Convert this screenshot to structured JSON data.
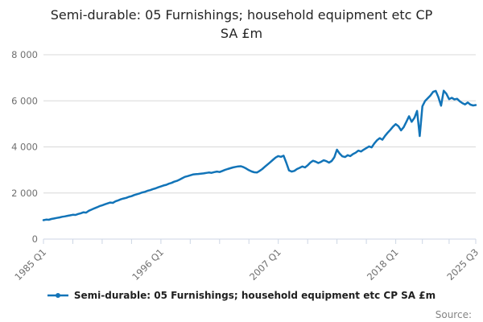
{
  "title": {
    "line1": "Semi-durable: 05 Furnishings; household equipment etc CP",
    "line2": "SA £m",
    "full": "Semi-durable: 05 Furnishings; household equipment etc CP SA £m"
  },
  "legend": {
    "label": "Semi-durable: 05 Furnishings; household equipment etc CP SA £m"
  },
  "source_label": "Source:",
  "colors": {
    "line": "#1274b8",
    "grid": "#d8d8d8",
    "axis": "#ccd6e4",
    "tick_label": "#6f6f6f",
    "title": "#242424",
    "legend_text": "#1f1f1f",
    "source": "#848484"
  },
  "chart_data": {
    "type": "line",
    "title": "Semi-durable: 05 Furnishings; household equipment etc CP SA £m",
    "series_name": "Semi-durable: 05 Furnishings; household equipment etc CP SA £m",
    "frequency": "quarterly",
    "x_range": [
      "1985 Q1",
      "2025 Q3"
    ],
    "ylim": [
      0,
      8000
    ],
    "grid": "horizontal",
    "legend_position": "bottom",
    "y_ticks": [
      {
        "value": 0,
        "label": "0"
      },
      {
        "value": 2000,
        "label": "2 000"
      },
      {
        "value": 4000,
        "label": "4 000"
      },
      {
        "value": 6000,
        "label": "6 000"
      },
      {
        "value": 8000,
        "label": "8 000"
      }
    ],
    "x_tick_labels": [
      {
        "label": "1985 Q1",
        "index": 0
      },
      {
        "label": "1996 Q1",
        "index": 44
      },
      {
        "label": "2007 Q1",
        "index": 88
      },
      {
        "label": "2018 Q1",
        "index": 132
      },
      {
        "label": "2025 Q3",
        "index": 162
      }
    ],
    "minor_tick_indices": [
      0,
      11,
      22,
      33,
      44,
      55,
      66,
      77,
      88,
      99,
      110,
      121,
      132,
      142,
      152,
      162
    ],
    "values": [
      820,
      845,
      838,
      872,
      895,
      918,
      940,
      968,
      985,
      1010,
      1030,
      1055,
      1048,
      1090,
      1120,
      1165,
      1150,
      1230,
      1280,
      1330,
      1375,
      1430,
      1465,
      1510,
      1548,
      1585,
      1572,
      1640,
      1680,
      1725,
      1760,
      1790,
      1835,
      1862,
      1910,
      1945,
      1980,
      2022,
      2050,
      2095,
      2125,
      2170,
      2200,
      2248,
      2285,
      2325,
      2355,
      2405,
      2440,
      2490,
      2525,
      2583,
      2641,
      2700,
      2733,
      2766,
      2800,
      2815,
      2825,
      2840,
      2850,
      2870,
      2890,
      2875,
      2905,
      2930,
      2910,
      2955,
      3000,
      3040,
      3075,
      3110,
      3135,
      3155,
      3160,
      3120,
      3060,
      2990,
      2935,
      2900,
      2890,
      2960,
      3040,
      3140,
      3240,
      3340,
      3440,
      3540,
      3600,
      3570,
      3620,
      3320,
      2980,
      2930,
      2960,
      3040,
      3090,
      3150,
      3110,
      3200,
      3320,
      3400,
      3360,
      3300,
      3350,
      3420,
      3380,
      3320,
      3390,
      3550,
      3880,
      3710,
      3590,
      3560,
      3640,
      3600,
      3690,
      3750,
      3840,
      3800,
      3880,
      3950,
      4020,
      3980,
      4150,
      4290,
      4380,
      4310,
      4480,
      4620,
      4740,
      4880,
      4990,
      4900,
      4720,
      4860,
      5090,
      5330,
      5090,
      5260,
      5560,
      4470,
      5760,
      5990,
      6110,
      6230,
      6390,
      6430,
      6160,
      5790,
      6440,
      6310,
      6070,
      6130,
      6060,
      6090,
      5980,
      5900,
      5845,
      5930,
      5835,
      5800,
      5815
    ]
  }
}
